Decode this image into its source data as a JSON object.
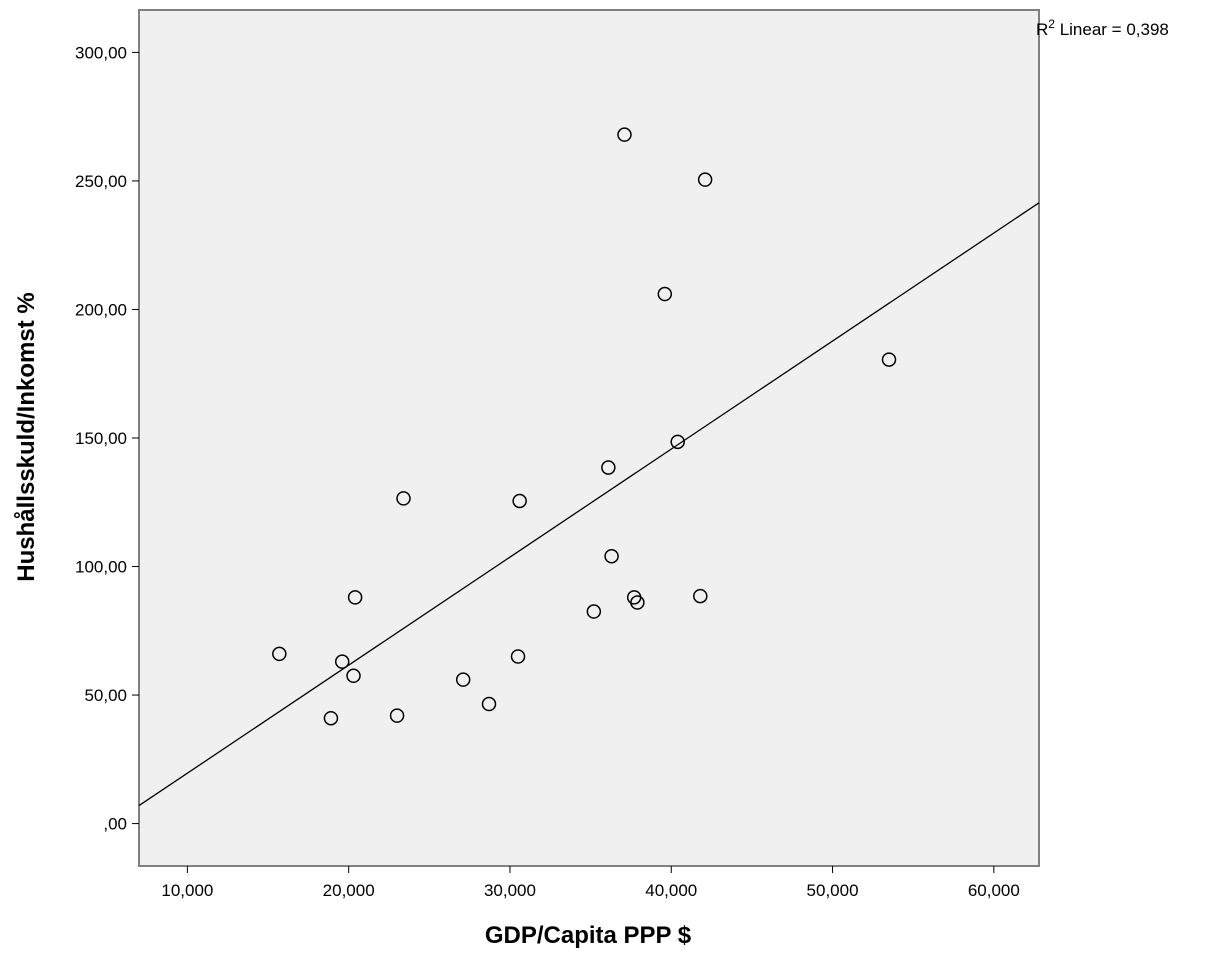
{
  "chart_data": {
    "type": "scatter",
    "xlabel": "GDP/Capita PPP $",
    "ylabel": "Hushållsskuld/Inkomst %",
    "xlim": [
      7000,
      62800
    ],
    "ylim": [
      -16.5,
      316.5
    ],
    "x_ticks": [
      10000,
      20000,
      30000,
      40000,
      50000,
      60000
    ],
    "x_tick_labels": [
      "10,000",
      "20,000",
      "30,000",
      "40,000",
      "50,000",
      "60,000"
    ],
    "y_ticks": [
      0,
      50,
      100,
      150,
      200,
      250,
      300
    ],
    "y_tick_labels": [
      ",00",
      "50,00",
      "100,00",
      "150,00",
      "200,00",
      "250,00",
      "300,00"
    ],
    "points": [
      {
        "x": 15700,
        "y": 66
      },
      {
        "x": 18900,
        "y": 41
      },
      {
        "x": 19600,
        "y": 63
      },
      {
        "x": 20300,
        "y": 57.5
      },
      {
        "x": 20400,
        "y": 88
      },
      {
        "x": 23000,
        "y": 42
      },
      {
        "x": 23400,
        "y": 126.5
      },
      {
        "x": 27100,
        "y": 56
      },
      {
        "x": 28700,
        "y": 46.5
      },
      {
        "x": 30500,
        "y": 65
      },
      {
        "x": 30600,
        "y": 125.5
      },
      {
        "x": 35200,
        "y": 82.5
      },
      {
        "x": 36100,
        "y": 138.5
      },
      {
        "x": 36300,
        "y": 104
      },
      {
        "x": 37100,
        "y": 268
      },
      {
        "x": 37700,
        "y": 88
      },
      {
        "x": 37900,
        "y": 86
      },
      {
        "x": 39600,
        "y": 206
      },
      {
        "x": 40400,
        "y": 148.5
      },
      {
        "x": 41800,
        "y": 88.5
      },
      {
        "x": 42100,
        "y": 250.5
      },
      {
        "x": 53500,
        "y": 180.5
      }
    ],
    "fit_line": {
      "type": "linear",
      "x": [
        7000,
        62800
      ],
      "y": [
        7,
        241.5
      ],
      "label_prefix": "R",
      "label_sup": "2",
      "label_suffix": " Linear = 0,398"
    },
    "grid": false,
    "colors": {
      "plot_background": "#f0f0f0",
      "frame": "#808080",
      "marker_stroke": "#000000",
      "fit_line": "#000000"
    }
  }
}
